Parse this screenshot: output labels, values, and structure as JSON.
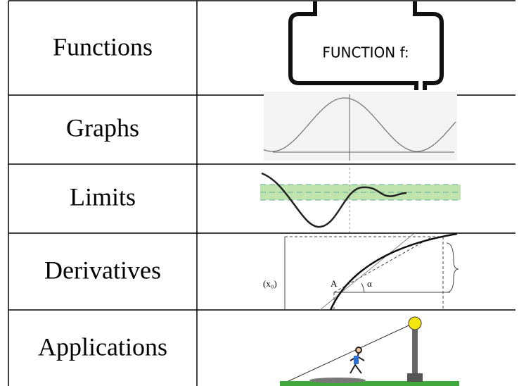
{
  "table": {
    "rows": [
      {
        "label": "Functions",
        "image_text": [
          "FUNCTION f:"
        ]
      },
      {
        "label": "Graphs"
      },
      {
        "label": "Limits"
      },
      {
        "label": "Derivatives",
        "image_text": [
          "(x₀)",
          "A",
          "α"
        ]
      },
      {
        "label": "Applications"
      }
    ]
  }
}
